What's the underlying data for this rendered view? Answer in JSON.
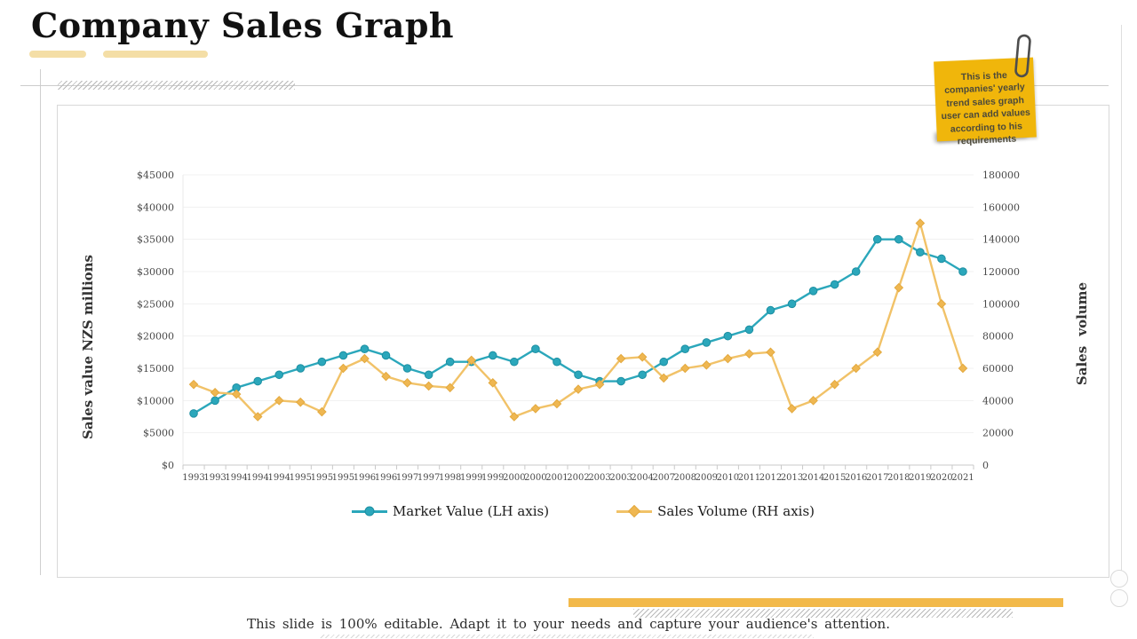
{
  "slide": {
    "title": "Company Sales Graph",
    "footer": "This slide is 100% editable.  Adapt it to your needs and capture your audience's attention.",
    "sticky_note": {
      "text": "This is the companies' yearly trend sales graph user can add values according to his requirements"
    },
    "colors": {
      "teal": "#2BA7BB",
      "gold_line": "#F1C268",
      "gold_marker": "#EFB751",
      "sticky_note": "#F0B60B",
      "accent_bar": "#F2B94A",
      "title_underline": "#F4DEA6"
    }
  },
  "chart_data": {
    "type": "line",
    "categories": [
      "1993",
      "1993",
      "1994",
      "1994",
      "1994",
      "1995",
      "1995",
      "1995",
      "1996",
      "1996",
      "1997",
      "1997",
      "1998",
      "1999",
      "1999",
      "2000",
      "2000",
      "2001",
      "2002",
      "2003",
      "2003",
      "2004",
      "2007",
      "2008",
      "2009",
      "2010",
      "2011",
      "2012",
      "2013",
      "2014",
      "2015",
      "2016",
      "2017",
      "2018",
      "2019",
      "2020",
      "2021"
    ],
    "series": [
      {
        "name": "Market Value (LH axis)",
        "axis": "left",
        "color": "#2BA7BB",
        "marker": "circle",
        "marker_fill": "#2BA7BB",
        "marker_stroke": "#1D8FA2",
        "values": [
          8000,
          10000,
          12000,
          13000,
          14000,
          15000,
          16000,
          17000,
          18000,
          17000,
          15000,
          14000,
          16000,
          16000,
          17000,
          16000,
          18000,
          16000,
          14000,
          13000,
          13000,
          14000,
          16000,
          18000,
          19000,
          20000,
          21000,
          24000,
          25000,
          27000,
          28000,
          30000,
          35000,
          35000,
          33000,
          32000,
          30000
        ]
      },
      {
        "name": "Sales Volume (RH axis)",
        "axis": "right",
        "color": "#F1C268",
        "marker": "diamond",
        "marker_fill": "#EFB751",
        "marker_stroke": "#E3A93F",
        "values": [
          50000,
          45000,
          44000,
          30000,
          40000,
          39000,
          33000,
          60000,
          66000,
          55000,
          51000,
          49000,
          48000,
          65000,
          51000,
          30000,
          35000,
          38000,
          47000,
          50000,
          66000,
          67000,
          54000,
          60000,
          62000,
          66000,
          69000,
          70000,
          35000,
          40000,
          50000,
          60000,
          70000,
          110000,
          150000,
          100000,
          60000
        ]
      }
    ],
    "left_axis": {
      "label": "Sales value NZS millions",
      "min": 0,
      "max": 45000,
      "step": 5000,
      "tick_labels": [
        "$0",
        "$5000",
        "$10000",
        "$15000",
        "$20000",
        "$25000",
        "$30000",
        "$35000",
        "$40000",
        "$45000"
      ]
    },
    "right_axis": {
      "label": "Sales volume",
      "min": 0,
      "max": 180000,
      "step": 20000,
      "tick_labels": [
        "0",
        "20000",
        "40000",
        "60000",
        "80000",
        "100000",
        "120000",
        "140000",
        "160000",
        "180000"
      ]
    },
    "grid": true,
    "legend_position": "bottom"
  }
}
